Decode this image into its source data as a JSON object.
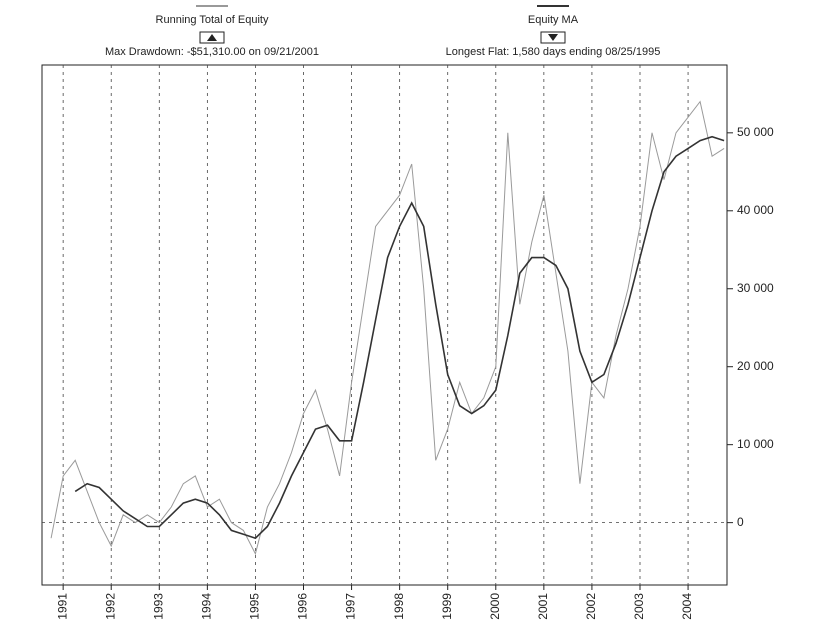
{
  "chart_data": {
    "type": "line",
    "legend": [
      {
        "name": "Running Total of Equity",
        "annotation": "Max Drawdown: -$51,310.00 on 09/21/2001"
      },
      {
        "name": "Equity MA",
        "annotation": "Longest Flat: 1,580 days ending 08/25/1995"
      }
    ],
    "x": [
      1990.75,
      1991,
      1991.25,
      1991.5,
      1991.75,
      1992,
      1992.25,
      1992.5,
      1992.75,
      1993,
      1993.25,
      1993.5,
      1993.75,
      1994,
      1994.25,
      1994.5,
      1994.75,
      1995,
      1995.25,
      1995.5,
      1995.75,
      1996,
      1996.25,
      1996.5,
      1996.75,
      1997,
      1997.25,
      1997.5,
      1997.75,
      1998,
      1998.25,
      1998.5,
      1998.75,
      1999,
      1999.25,
      1999.5,
      1999.75,
      2000,
      2000.25,
      2000.5,
      2000.75,
      2001,
      2001.25,
      2001.5,
      2001.75,
      2002,
      2002.25,
      2002.5,
      2002.75,
      2003,
      2003.25,
      2003.5,
      2003.75,
      2004,
      2004.25,
      2004.5,
      2004.75
    ],
    "series": [
      {
        "name": "Running Total of Equity",
        "color": "#9a9a9a",
        "values": [
          -2000,
          6000,
          8000,
          4000,
          0,
          -3000,
          1000,
          0,
          1000,
          0,
          2000,
          5000,
          6000,
          2000,
          3000,
          0,
          -1000,
          -4000,
          2000,
          5000,
          9000,
          14000,
          17000,
          12000,
          6000,
          18000,
          28000,
          38000,
          40000,
          42000,
          46000,
          30000,
          8000,
          12000,
          18000,
          14000,
          16000,
          20000,
          50000,
          28000,
          36000,
          42000,
          32000,
          22000,
          5000,
          18000,
          16000,
          24000,
          30000,
          38000,
          50000,
          44000,
          50000,
          52000,
          54000,
          47000,
          48000
        ]
      },
      {
        "name": "Equity MA",
        "color": "#333333",
        "values": [
          null,
          null,
          4000,
          5000,
          4500,
          3000,
          1500,
          500,
          -500,
          -500,
          1000,
          2500,
          3000,
          2500,
          1000,
          -1000,
          -1500,
          -2000,
          -500,
          2500,
          6000,
          9000,
          12000,
          12500,
          10500,
          10500,
          18000,
          26000,
          34000,
          38000,
          41000,
          38000,
          28000,
          19000,
          15000,
          14000,
          15000,
          17000,
          24000,
          32000,
          34000,
          34000,
          33000,
          30000,
          22000,
          18000,
          19000,
          23000,
          28000,
          34000,
          40000,
          45000,
          47000,
          48000,
          49000,
          49500,
          49000
        ]
      }
    ],
    "xlim": [
      1990.56,
      2004.81
    ],
    "xticks": [
      1991,
      1992,
      1993,
      1994,
      1995,
      1996,
      1997,
      1998,
      1999,
      2000,
      2001,
      2002,
      2003,
      2004
    ],
    "ylim": [
      -8000,
      58700
    ],
    "yticks": [
      0,
      {
        "value": 10000,
        "label": "10 000"
      },
      {
        "value": 20000,
        "label": "20 000"
      },
      {
        "value": 30000,
        "label": "30 000"
      },
      {
        "value": 40000,
        "label": "40 000"
      },
      {
        "value": 50000,
        "label": "50 000"
      }
    ],
    "grid": true
  }
}
